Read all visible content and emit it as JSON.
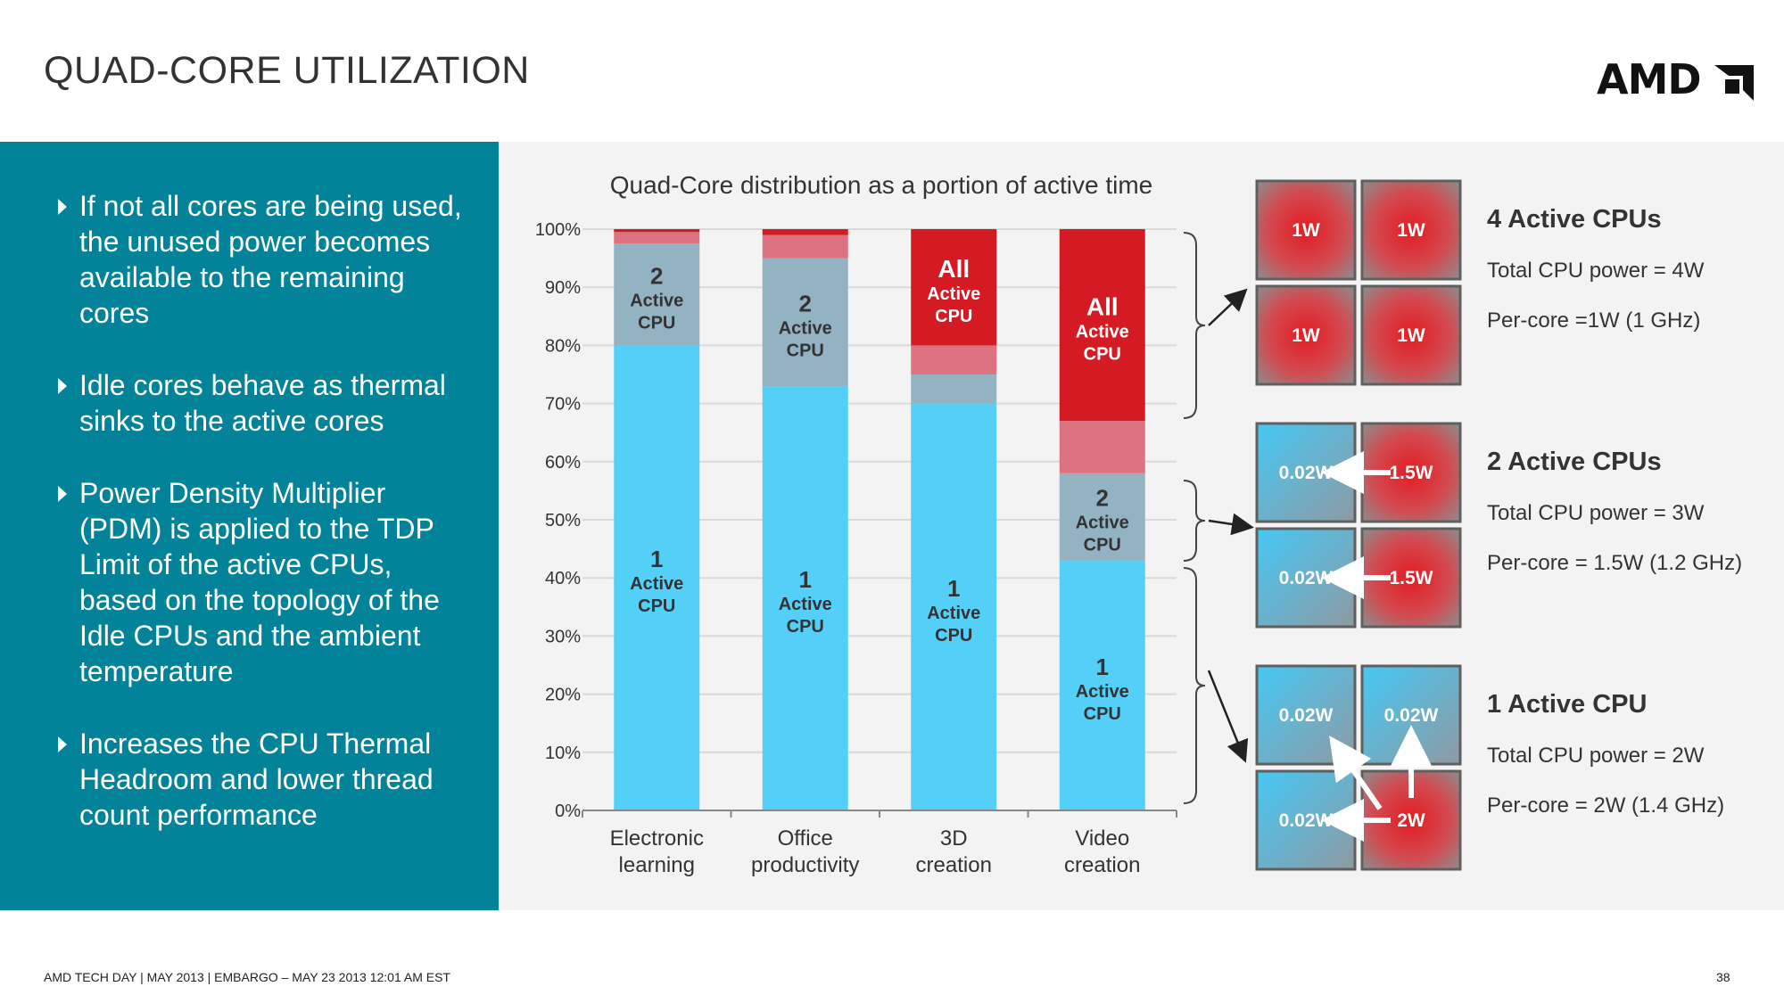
{
  "slide": {
    "title": "QUAD-CORE UTILIZATION",
    "logo": "AMD",
    "footer": "AMD TECH DAY  |  MAY 2013  |  EMBARGO – MAY 23 2013 12:01 AM EST",
    "page_number": "38"
  },
  "bullets": [
    "If not all cores are being used, the unused power becomes available to the remaining cores",
    "Idle cores behave as thermal sinks to the active cores",
    "Power Density Multiplier (PDM) is applied to the TDP Limit of the active CPUs, based on the topology of the Idle CPUs and the ambient temperature",
    "Increases the CPU Thermal Headroom and lower thread count performance"
  ],
  "chart_data": {
    "type": "bar",
    "stacked": true,
    "title": "Quad-Core distribution as a portion of active time",
    "categories": [
      "Electronic learning",
      "Office productivity",
      "3D creation",
      "Video creation"
    ],
    "ylim": [
      0,
      100
    ],
    "yticks": [
      "0%",
      "10%",
      "20%",
      "30%",
      "40%",
      "50%",
      "60%",
      "70%",
      "80%",
      "90%",
      "100%"
    ],
    "grid": true,
    "colors": {
      "1": "#54d0f8",
      "2": "#93b2c2",
      "3": "#dd7380",
      "All": "#d41a22"
    },
    "series": [
      {
        "key": "1",
        "values": [
          80,
          73,
          70,
          43
        ],
        "label": [
          "1",
          "Active",
          "CPU"
        ]
      },
      {
        "key": "2",
        "values": [
          17.5,
          22,
          5,
          15
        ],
        "label": [
          "2",
          "Active",
          "CPU"
        ]
      },
      {
        "key": "3",
        "values": [
          2,
          4,
          5,
          9
        ],
        "label": []
      },
      {
        "key": "All",
        "values": [
          0.5,
          1,
          20,
          33
        ],
        "label": [
          "All",
          "Active",
          "CPU"
        ]
      }
    ]
  },
  "power_groups": [
    {
      "title": "4 Active CPUs",
      "total": "Total CPU power = 4W",
      "per_core": "Per-core =1W (1 GHz)",
      "tiles": [
        "1W",
        "1W",
        "1W",
        "1W"
      ],
      "active": [
        true,
        true,
        true,
        true
      ]
    },
    {
      "title": "2 Active CPUs",
      "total": "Total CPU power = 3W",
      "per_core": "Per-core = 1.5W (1.2 GHz)",
      "tiles": [
        "0.02W",
        "1.5W",
        "0.02W",
        "1.5W"
      ],
      "active": [
        false,
        true,
        false,
        true
      ]
    },
    {
      "title": "1 Active CPU",
      "total": "Total CPU power = 2W",
      "per_core": "Per-core = 2W (1.4 GHz)",
      "tiles": [
        "0.02W",
        "0.02W",
        "0.02W",
        "2W"
      ],
      "active": [
        false,
        false,
        false,
        true
      ]
    }
  ]
}
